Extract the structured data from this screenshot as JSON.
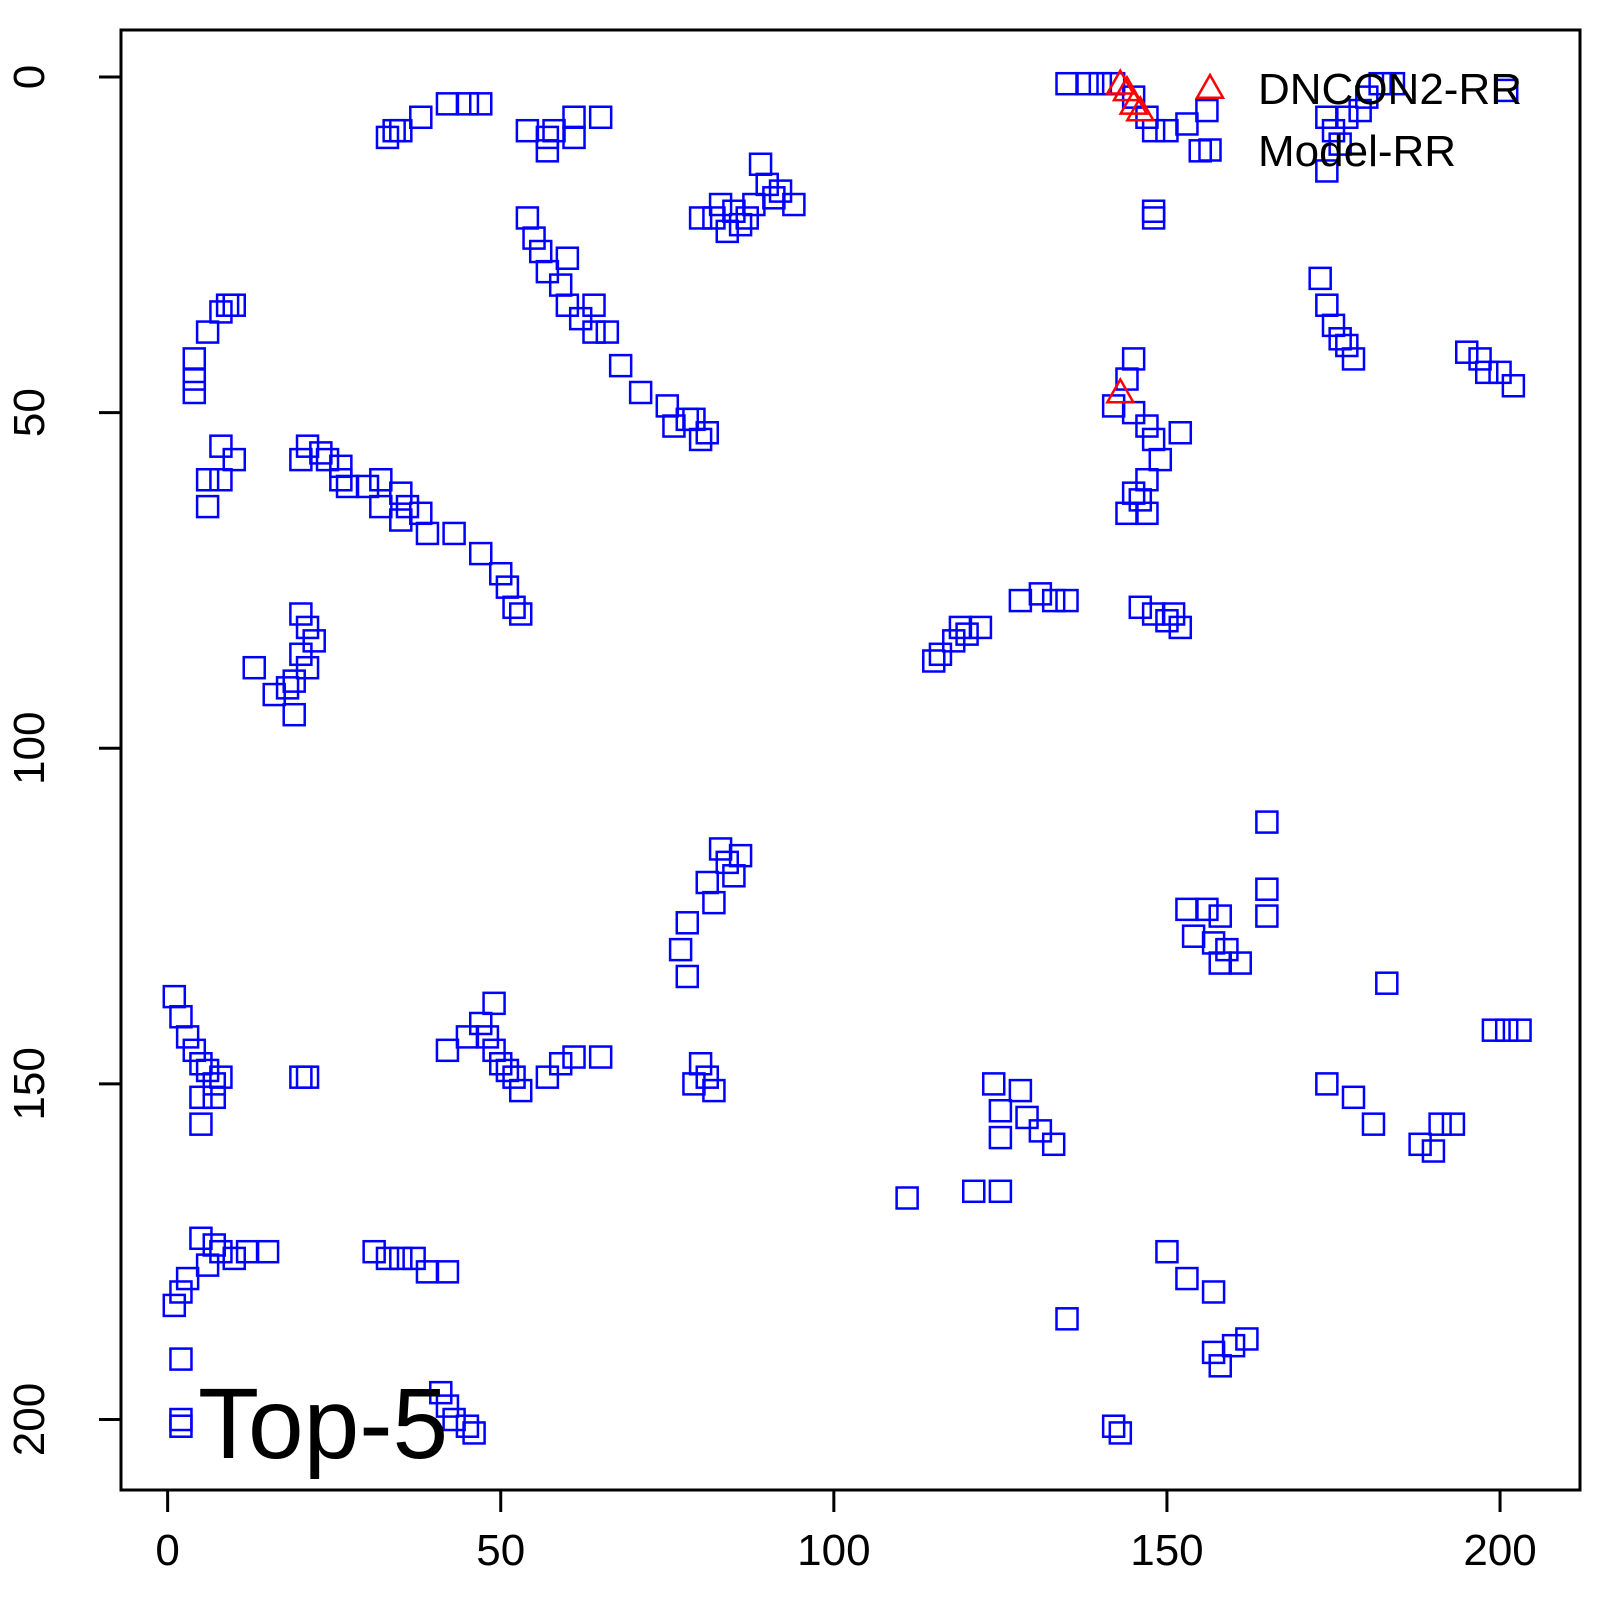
{
  "chart_data": {
    "type": "scatter",
    "title": "",
    "xlabel": "",
    "ylabel": "",
    "xlim": [
      -7,
      212
    ],
    "ylim": [
      210.5,
      -7
    ],
    "y_reversed": true,
    "grid": false,
    "legend_position": "top-right",
    "annotation": "Top-5",
    "x_ticks": [
      "0",
      "50",
      "100",
      "150",
      "200"
    ],
    "y_ticks": [
      "0",
      "50",
      "100",
      "150",
      "200"
    ],
    "colors": {
      "dncon2": "#ff0000",
      "model": "#0000ff"
    },
    "series": [
      {
        "name": "DNCON2-RR",
        "marker": "triangle",
        "points": [
          [
            143,
            1
          ],
          [
            144,
            2
          ],
          [
            145,
            4
          ],
          [
            146,
            5
          ],
          [
            143,
            47
          ]
        ]
      },
      {
        "name": "Model-RR",
        "marker": "square",
        "points": [
          [
            135,
            1
          ],
          [
            138,
            1
          ],
          [
            140,
            1
          ],
          [
            142,
            1
          ],
          [
            145,
            3
          ],
          [
            147,
            6
          ],
          [
            148,
            8
          ],
          [
            150,
            8
          ],
          [
            153,
            7
          ],
          [
            156,
            5
          ],
          [
            155,
            11
          ],
          [
            174,
            6
          ],
          [
            175,
            8
          ],
          [
            177,
            6
          ],
          [
            179,
            5
          ],
          [
            180,
            3
          ],
          [
            182,
            1
          ],
          [
            184,
            1
          ],
          [
            176,
            10
          ],
          [
            174,
            14
          ],
          [
            201,
            2
          ],
          [
            33,
            9
          ],
          [
            34,
            8
          ],
          [
            35,
            8
          ],
          [
            38,
            6
          ],
          [
            42,
            4
          ],
          [
            45,
            4
          ],
          [
            47,
            4
          ],
          [
            54,
            8
          ],
          [
            57,
            9
          ],
          [
            58,
            8
          ],
          [
            57,
            11
          ],
          [
            61,
            9
          ],
          [
            61,
            6
          ],
          [
            65,
            6
          ],
          [
            89,
            13
          ],
          [
            90,
            16
          ],
          [
            91,
            18
          ],
          [
            92,
            17
          ],
          [
            94,
            19
          ],
          [
            88,
            19
          ],
          [
            87,
            21
          ],
          [
            86,
            22
          ],
          [
            84,
            23
          ],
          [
            82,
            21
          ],
          [
            80,
            21
          ],
          [
            83,
            19
          ],
          [
            85,
            20
          ],
          [
            148,
            20
          ],
          [
            148,
            21
          ],
          [
            54,
            21
          ],
          [
            55,
            24
          ],
          [
            56,
            26
          ],
          [
            57,
            29
          ],
          [
            60,
            27
          ],
          [
            59,
            31
          ],
          [
            60,
            34
          ],
          [
            62,
            36
          ],
          [
            64,
            34
          ],
          [
            64,
            38
          ],
          [
            66,
            38
          ],
          [
            68,
            43
          ],
          [
            71,
            47
          ],
          [
            75,
            49
          ],
          [
            76,
            52
          ],
          [
            78,
            51
          ],
          [
            80,
            54
          ],
          [
            81,
            53
          ],
          [
            79,
            51
          ],
          [
            10,
            34
          ],
          [
            9,
            34
          ],
          [
            8,
            35
          ],
          [
            6,
            38
          ],
          [
            4,
            42
          ],
          [
            4,
            45
          ],
          [
            4,
            47
          ],
          [
            8,
            55
          ],
          [
            10,
            57
          ],
          [
            8,
            60
          ],
          [
            6,
            64
          ],
          [
            6,
            60
          ],
          [
            20,
            57
          ],
          [
            21,
            55
          ],
          [
            23,
            56
          ],
          [
            24,
            57
          ],
          [
            26,
            58
          ],
          [
            26,
            60
          ],
          [
            27,
            61
          ],
          [
            30,
            61
          ],
          [
            32,
            60
          ],
          [
            32,
            64
          ],
          [
            35,
            62
          ],
          [
            35,
            66
          ],
          [
            36,
            64
          ],
          [
            38,
            65
          ],
          [
            39,
            68
          ],
          [
            43,
            68
          ],
          [
            47,
            71
          ],
          [
            50,
            74
          ],
          [
            51,
            76
          ],
          [
            52,
            79
          ],
          [
            53,
            80
          ],
          [
            20,
            80
          ],
          [
            21,
            82
          ],
          [
            22,
            84
          ],
          [
            20,
            86
          ],
          [
            21,
            88
          ],
          [
            19,
            90
          ],
          [
            18,
            91
          ],
          [
            16,
            92
          ],
          [
            13,
            88
          ],
          [
            19,
            95
          ],
          [
            173,
            30
          ],
          [
            174,
            34
          ],
          [
            175,
            37
          ],
          [
            176,
            39
          ],
          [
            177,
            40
          ],
          [
            178,
            42
          ],
          [
            195,
            41
          ],
          [
            197,
            42
          ],
          [
            198,
            44
          ],
          [
            200,
            44
          ],
          [
            202,
            46
          ],
          [
            145,
            42
          ],
          [
            144,
            45
          ],
          [
            142,
            49
          ],
          [
            145,
            50
          ],
          [
            147,
            52
          ],
          [
            148,
            54
          ],
          [
            149,
            57
          ],
          [
            147,
            60
          ],
          [
            146,
            63
          ],
          [
            144,
            65
          ],
          [
            145,
            62
          ],
          [
            147,
            65
          ],
          [
            152,
            53
          ],
          [
            128,
            78
          ],
          [
            131,
            77
          ],
          [
            133,
            78
          ],
          [
            135,
            78
          ],
          [
            122,
            82
          ],
          [
            120,
            83
          ],
          [
            118,
            84
          ],
          [
            116,
            86
          ],
          [
            115,
            87
          ],
          [
            119,
            82
          ],
          [
            146,
            79
          ],
          [
            148,
            80
          ],
          [
            150,
            81
          ],
          [
            151,
            80
          ],
          [
            152,
            82
          ],
          [
            83,
            115
          ],
          [
            84,
            117
          ],
          [
            85,
            119
          ],
          [
            86,
            116
          ],
          [
            81,
            120
          ],
          [
            82,
            123
          ],
          [
            78,
            126
          ],
          [
            77,
            130
          ],
          [
            78,
            134
          ],
          [
            165,
            111
          ],
          [
            165,
            121
          ],
          [
            165,
            125
          ],
          [
            153,
            124
          ],
          [
            156,
            124
          ],
          [
            158,
            125
          ],
          [
            154,
            128
          ],
          [
            157,
            129
          ],
          [
            159,
            130
          ],
          [
            158,
            132
          ],
          [
            161,
            132
          ],
          [
            183,
            135
          ],
          [
            1,
            137
          ],
          [
            2,
            140
          ],
          [
            3,
            143
          ],
          [
            4,
            145
          ],
          [
            5,
            147
          ],
          [
            6,
            148
          ],
          [
            7,
            150
          ],
          [
            8,
            149
          ],
          [
            5,
            152
          ],
          [
            5,
            156
          ],
          [
            7,
            152
          ],
          [
            20,
            149
          ],
          [
            21,
            149
          ],
          [
            42,
            145
          ],
          [
            45,
            143
          ],
          [
            47,
            141
          ],
          [
            48,
            143
          ],
          [
            49,
            145
          ],
          [
            50,
            147
          ],
          [
            51,
            148
          ],
          [
            52,
            149
          ],
          [
            53,
            151
          ],
          [
            57,
            149
          ],
          [
            59,
            147
          ],
          [
            61,
            146
          ],
          [
            65,
            146
          ],
          [
            49,
            138
          ],
          [
            80,
            147
          ],
          [
            81,
            149
          ],
          [
            82,
            151
          ],
          [
            79,
            150
          ],
          [
            174,
            150
          ],
          [
            178,
            152
          ],
          [
            181,
            156
          ],
          [
            188,
            159
          ],
          [
            190,
            160
          ],
          [
            191,
            156
          ],
          [
            193,
            156
          ],
          [
            199,
            142
          ],
          [
            201,
            142
          ],
          [
            203,
            142
          ],
          [
            124,
            150
          ],
          [
            125,
            154
          ],
          [
            128,
            151
          ],
          [
            129,
            155
          ],
          [
            131,
            157
          ],
          [
            133,
            159
          ],
          [
            125,
            158
          ],
          [
            111,
            167
          ],
          [
            121,
            166
          ],
          [
            125,
            166
          ],
          [
            5,
            173
          ],
          [
            7,
            174
          ],
          [
            8,
            175
          ],
          [
            10,
            176
          ],
          [
            12,
            175
          ],
          [
            15,
            175
          ],
          [
            3,
            179
          ],
          [
            2,
            181
          ],
          [
            1,
            183
          ],
          [
            6,
            177
          ],
          [
            31,
            175
          ],
          [
            33,
            176
          ],
          [
            35,
            176
          ],
          [
            37,
            176
          ],
          [
            39,
            178
          ],
          [
            42,
            178
          ],
          [
            150,
            175
          ],
          [
            153,
            179
          ],
          [
            157,
            181
          ],
          [
            135,
            185
          ],
          [
            157,
            190
          ],
          [
            158,
            192
          ],
          [
            160,
            189
          ],
          [
            162,
            188
          ],
          [
            2,
            191
          ],
          [
            41,
            196
          ],
          [
            42,
            198
          ],
          [
            43,
            200
          ],
          [
            45,
            201
          ],
          [
            46,
            202
          ],
          [
            2,
            200
          ],
          [
            2,
            201
          ],
          [
            142,
            201
          ],
          [
            143,
            202
          ]
        ]
      }
    ]
  }
}
